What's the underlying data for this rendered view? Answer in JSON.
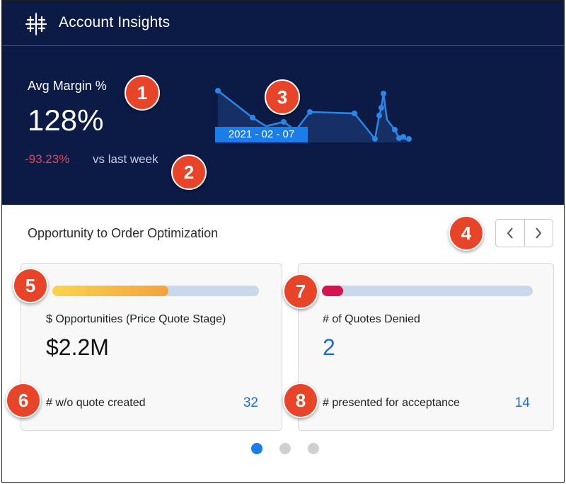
{
  "header": {
    "title": "Account Insights",
    "logo_icon": "tableau-logo-icon"
  },
  "kpi": {
    "label": "Avg Margin %",
    "value": "128%",
    "change": "-93.23%",
    "vs_text": "vs last week",
    "tooltip_date": "2021 - 02 - 07"
  },
  "section": {
    "title": "Opportunity to Order Optimization"
  },
  "nav": {
    "prev_icon": "chevron-left-icon",
    "next_icon": "chevron-right-icon"
  },
  "cards": [
    {
      "progress_percent": 56,
      "bar_color": "#f2a33e",
      "label": "$ Opportunities (Price Quote Stage)",
      "value": "$2.2M",
      "sub_label": "# w/o quote created",
      "sub_value": "32"
    },
    {
      "progress_percent": 10,
      "bar_color": "#d6124f",
      "label": "# of Quotes Denied",
      "value": "2",
      "sub_label": "# presented for acceptance",
      "sub_value": "14"
    }
  ],
  "pagination": {
    "pages": 3,
    "active": 0
  },
  "annotations": [
    "1",
    "2",
    "3",
    "4",
    "5",
    "6",
    "7",
    "8"
  ],
  "colors": {
    "dark_bg": "#0c1b45",
    "accent": "#1b7ee8",
    "negative": "#e0475b",
    "badge": "#e8442a"
  }
}
